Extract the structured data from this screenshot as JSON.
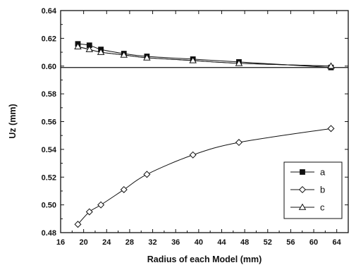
{
  "chart_data": {
    "type": "line",
    "xlabel": "Radius of each Model (mm)",
    "ylabel": "Uz (mm)",
    "xlim": [
      16,
      66
    ],
    "ylim": [
      0.48,
      0.64
    ],
    "xticks": [
      16,
      20,
      24,
      28,
      32,
      36,
      40,
      44,
      48,
      52,
      56,
      60,
      64
    ],
    "yticks": [
      0.48,
      0.5,
      0.52,
      0.54,
      0.56,
      0.58,
      0.6,
      0.62,
      0.64
    ],
    "xtick_labels": [
      "16",
      "20",
      "24",
      "28",
      "32",
      "36",
      "40",
      "44",
      "48",
      "52",
      "56",
      "60",
      "64"
    ],
    "ytick_labels": [
      "0.48",
      "0.50",
      "0.52",
      "0.54",
      "0.56",
      "0.58",
      "0.60",
      "0.62",
      "0.64"
    ],
    "reference_line": {
      "y": 0.599
    },
    "legend_position": "lower-right",
    "grid": false,
    "series": [
      {
        "name": "a",
        "marker": "filled-square",
        "x": [
          19,
          21,
          23,
          27,
          31,
          39,
          47,
          63
        ],
        "y": [
          0.616,
          0.615,
          0.612,
          0.609,
          0.607,
          0.605,
          0.603,
          0.599
        ]
      },
      {
        "name": "b",
        "marker": "open-diamond",
        "x": [
          19,
          21,
          23,
          27,
          31,
          39,
          47,
          63
        ],
        "y": [
          0.486,
          0.495,
          0.5,
          0.511,
          0.522,
          0.536,
          0.545,
          0.555
        ],
        "extra_line": {
          "x": [
            19,
            21,
            23,
            27,
            31,
            39,
            47,
            63
          ],
          "y": [
            0.614,
            0.612,
            0.61,
            0.608,
            0.606,
            0.604,
            0.602,
            0.6
          ]
        }
      },
      {
        "name": "c",
        "marker": "open-triangle",
        "x": [
          19,
          21,
          23,
          27,
          31,
          39,
          47,
          63
        ],
        "y": [
          0.614,
          0.612,
          0.61,
          0.608,
          0.606,
          0.604,
          0.602,
          0.6
        ]
      }
    ]
  }
}
